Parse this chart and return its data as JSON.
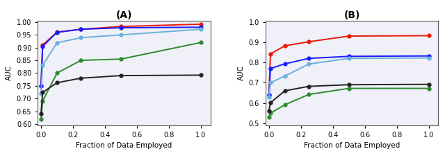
{
  "x": [
    0.0,
    0.01,
    0.1,
    0.25,
    0.5,
    1.0
  ],
  "A": {
    "title": "(A)",
    "ylim": [
      0.595,
      1.005
    ],
    "yticks": [
      0.6,
      0.65,
      0.7,
      0.75,
      0.8,
      0.85,
      0.9,
      0.95,
      1.0
    ],
    "ytick_labels": [
      "0.60",
      "0.65",
      "0.70",
      "0.75",
      "0.80",
      "0.85",
      "0.90",
      "0.95",
      "1.00"
    ],
    "red": [
      0.75,
      0.91,
      0.961,
      0.972,
      0.983,
      0.992
    ],
    "blue": [
      0.75,
      0.905,
      0.96,
      0.972,
      0.978,
      0.98
    ],
    "lightblue": [
      0.72,
      0.83,
      0.919,
      0.939,
      0.95,
      0.972
    ],
    "green": [
      0.62,
      0.69,
      0.8,
      0.85,
      0.855,
      0.92
    ],
    "black": [
      0.64,
      0.724,
      0.762,
      0.78,
      0.79,
      0.792
    ]
  },
  "B": {
    "title": "(B)",
    "ylim": [
      0.49,
      1.005
    ],
    "yticks": [
      0.5,
      0.6,
      0.7,
      0.8,
      0.9,
      1.0
    ],
    "ytick_labels": [
      "0.5",
      "0.6",
      "0.7",
      "0.8",
      "0.9",
      "1.0"
    ],
    "red": [
      0.64,
      0.842,
      0.882,
      0.902,
      0.93,
      0.932
    ],
    "blue": [
      0.64,
      0.77,
      0.793,
      0.82,
      0.83,
      0.832
    ],
    "lightblue": [
      0.63,
      0.7,
      0.733,
      0.792,
      0.82,
      0.822
    ],
    "green": [
      0.53,
      0.55,
      0.591,
      0.642,
      0.672,
      0.672
    ],
    "black": [
      0.56,
      0.601,
      0.66,
      0.682,
      0.69,
      0.692
    ]
  },
  "colors": {
    "red": "#e8190a",
    "blue": "#1a1aff",
    "lightblue": "#6ab0de",
    "green": "#2d8a2d",
    "black": "#222222"
  },
  "series_order": [
    "red",
    "blue",
    "lightblue",
    "green",
    "black"
  ],
  "xlabel": "Fraction of Data Employed",
  "ylabel": "AUC",
  "marker": "o",
  "markersize": 3.5,
  "linewidth": 1.4,
  "xticks": [
    0.0,
    0.2,
    0.4,
    0.6,
    0.8,
    1.0
  ],
  "xtick_labels": [
    "0.0",
    "0.2",
    "0.4",
    "0.6",
    "0.8",
    "1.0"
  ],
  "xlim": [
    -0.02,
    1.06
  ]
}
